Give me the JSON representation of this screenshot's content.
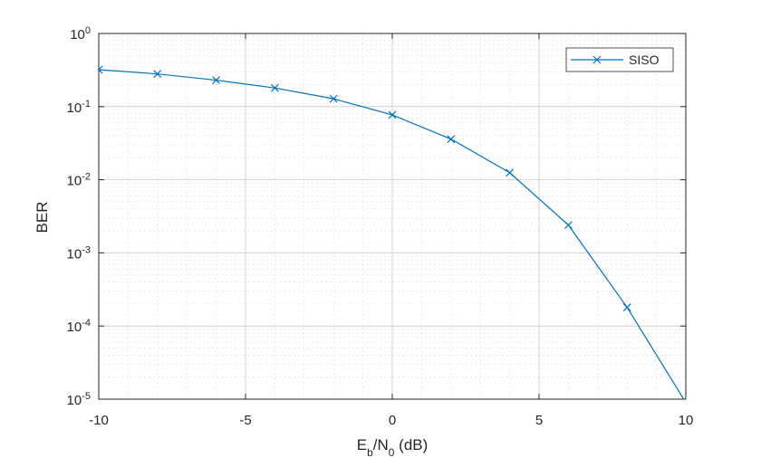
{
  "chart_data": {
    "type": "line",
    "title": "",
    "xlabel": "E_b/N_0 (dB)",
    "xlabel_parts": {
      "base1": "E",
      "sub1": "b",
      "mid": "/N",
      "sub2": "0",
      "tail": " (dB)"
    },
    "ylabel": "BER",
    "xlim": [
      -10,
      10
    ],
    "ylim": [
      1e-05,
      1
    ],
    "yscale": "log",
    "grid": true,
    "minor_grid": true,
    "legend_position": "top-right",
    "x_ticks": [
      -10,
      -5,
      0,
      5,
      10
    ],
    "y_ticks": [
      {
        "value": 1e-05,
        "base": "10",
        "exp": "-5"
      },
      {
        "value": 0.0001,
        "base": "10",
        "exp": "-4"
      },
      {
        "value": 0.001,
        "base": "10",
        "exp": "-3"
      },
      {
        "value": 0.01,
        "base": "10",
        "exp": "-2"
      },
      {
        "value": 0.1,
        "base": "10",
        "exp": "-1"
      },
      {
        "value": 1,
        "base": "10",
        "exp": "0"
      }
    ],
    "series": [
      {
        "name": "SISO",
        "color": "#0072BD",
        "marker": "x",
        "x": [
          -10,
          -8,
          -6,
          -4,
          -2,
          0,
          2,
          4,
          6,
          8,
          10
        ],
        "y": [
          0.32,
          0.28,
          0.23,
          0.18,
          0.128,
          0.077,
          0.036,
          0.0125,
          0.0024,
          0.00018,
          9e-06
        ]
      }
    ]
  }
}
